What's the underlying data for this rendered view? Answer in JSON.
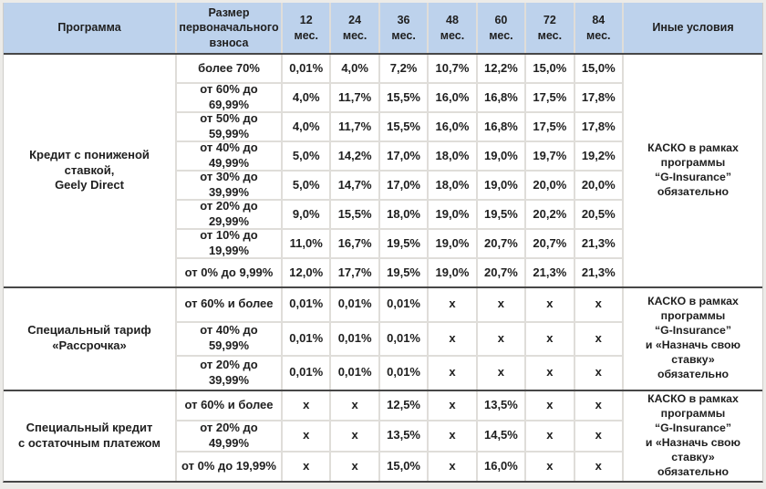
{
  "colors": {
    "page_bg": "#ecebe8",
    "header_bg": "#bdd2ec",
    "cell_bg": "#ffffff",
    "grid_line": "#dfddd9",
    "section_border": "#474747",
    "text": "#202020"
  },
  "table": {
    "headers": {
      "program": "Программа",
      "down_payment": "Размер первоначального взноса",
      "terms": [
        "12 мес.",
        "24 мес.",
        "36 мес.",
        "48 мес.",
        "60 мес.",
        "72 мес.",
        "84 мес."
      ],
      "other_conditions": "Иные условия"
    },
    "groups": [
      {
        "program": "Кредит с пониженой ставкой,\nGeely Direct",
        "conditions": "КАСКО в рамках\nпрограммы\n“G-Insurance”\nобязательно",
        "rows": [
          {
            "down_payment": "более 70%",
            "rates": [
              "0,01%",
              "4,0%",
              "7,2%",
              "10,7%",
              "12,2%",
              "15,0%",
              "15,0%"
            ]
          },
          {
            "down_payment": "от 60% до 69,99%",
            "rates": [
              "4,0%",
              "11,7%",
              "15,5%",
              "16,0%",
              "16,8%",
              "17,5%",
              "17,8%"
            ]
          },
          {
            "down_payment": "от 50% до 59,99%",
            "rates": [
              "4,0%",
              "11,7%",
              "15,5%",
              "16,0%",
              "16,8%",
              "17,5%",
              "17,8%"
            ]
          },
          {
            "down_payment": "от 40% до 49,99%",
            "rates": [
              "5,0%",
              "14,2%",
              "17,0%",
              "18,0%",
              "19,0%",
              "19,7%",
              "19,2%"
            ]
          },
          {
            "down_payment": "от 30% до 39,99%",
            "rates": [
              "5,0%",
              "14,7%",
              "17,0%",
              "18,0%",
              "19,0%",
              "20,0%",
              "20,0%"
            ]
          },
          {
            "down_payment": "от 20% до 29,99%",
            "rates": [
              "9,0%",
              "15,5%",
              "18,0%",
              "19,0%",
              "19,5%",
              "20,2%",
              "20,5%"
            ]
          },
          {
            "down_payment": "от 10% до 19,99%",
            "rates": [
              "11,0%",
              "16,7%",
              "19,5%",
              "19,0%",
              "20,7%",
              "20,7%",
              "21,3%"
            ]
          },
          {
            "down_payment": "от 0% до 9,99%",
            "rates": [
              "12,0%",
              "17,7%",
              "19,5%",
              "19,0%",
              "20,7%",
              "21,3%",
              "21,3%"
            ]
          }
        ]
      },
      {
        "program": "Специальный тариф\n«Рассрочка»",
        "conditions": "КАСКО в рамках\nпрограммы\n“G-Insurance”\nи «Назначь свою ставку»\nобязательно",
        "rows": [
          {
            "down_payment": "от 60% и более",
            "rates": [
              "0,01%",
              "0,01%",
              "0,01%",
              "x",
              "x",
              "x",
              "x"
            ]
          },
          {
            "down_payment": "от 40% до 59,99%",
            "rates": [
              "0,01%",
              "0,01%",
              "0,01%",
              "x",
              "x",
              "x",
              "x"
            ]
          },
          {
            "down_payment": "от 20% до 39,99%",
            "rates": [
              "0,01%",
              "0,01%",
              "0,01%",
              "x",
              "x",
              "x",
              "x"
            ]
          }
        ]
      },
      {
        "program": "Специальный кредит\nс остаточным платежом",
        "conditions": "КАСКО в рамках\nпрограммы\n“G-Insurance”\nи «Назначь свою ставку»\nобязательно",
        "rows": [
          {
            "down_payment": "от 60% и более",
            "rates": [
              "x",
              "x",
              "12,5%",
              "x",
              "13,5%",
              "x",
              "x"
            ]
          },
          {
            "down_payment": "от 20% до 49,99%",
            "rates": [
              "x",
              "x",
              "13,5%",
              "x",
              "14,5%",
              "x",
              "x"
            ]
          },
          {
            "down_payment": "от 0% до 19,99%",
            "rates": [
              "x",
              "x",
              "15,0%",
              "x",
              "16,0%",
              "x",
              "x"
            ]
          }
        ]
      }
    ]
  }
}
